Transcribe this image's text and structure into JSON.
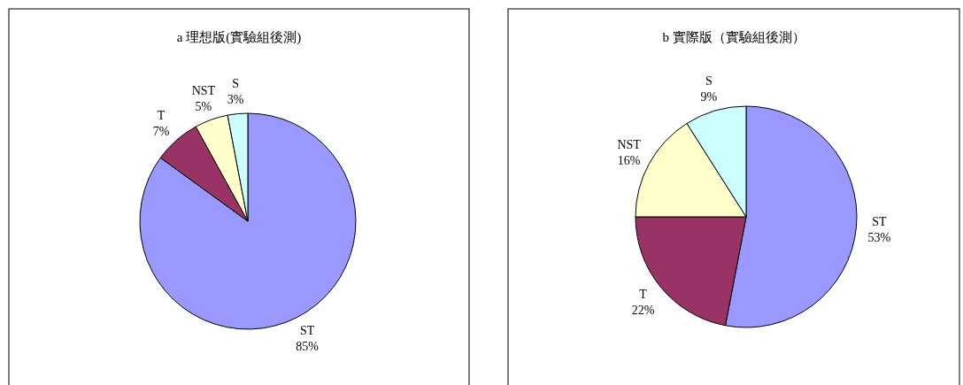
{
  "chart_data": [
    {
      "type": "pie",
      "title": "a 理想版(實驗組後測)",
      "categories": [
        "ST",
        "T",
        "NST",
        "S"
      ],
      "values": [
        85,
        7,
        5,
        3
      ],
      "value_labels": [
        "85%",
        "7%",
        "5%",
        "3%"
      ],
      "colors": [
        "#9999ff",
        "#993366",
        "#ffffcc",
        "#ccffff"
      ]
    },
    {
      "type": "pie",
      "title": "b 實際版（實驗組後測）",
      "categories": [
        "ST",
        "T",
        "NST",
        "S"
      ],
      "values": [
        53,
        22,
        16,
        9
      ],
      "value_labels": [
        "53%",
        "22%",
        "16%",
        "9%"
      ],
      "colors": [
        "#9999ff",
        "#993366",
        "#ffffcc",
        "#ccffff"
      ]
    }
  ]
}
